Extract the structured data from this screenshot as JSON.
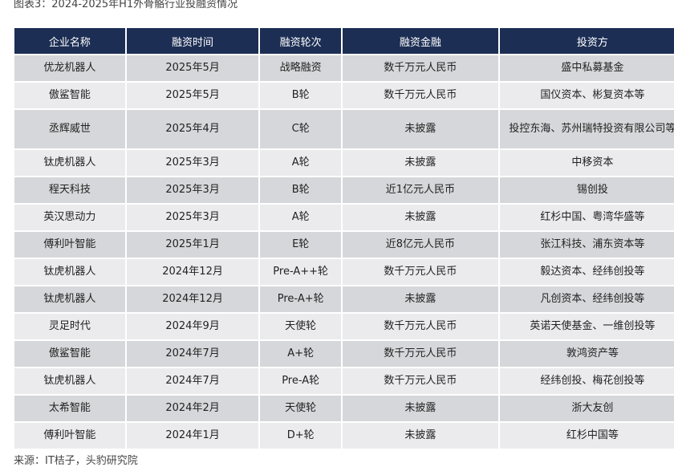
{
  "title": "图表3：2024-2025年H1外骨骼行业投融资情况",
  "headers": [
    "企业名称",
    "融资时间",
    "融资轮次",
    "融资金融",
    "投资方"
  ],
  "rows": [
    [
      "优龙机器人",
      "2025年5月",
      "战略融资",
      "数千万元人民币",
      "盛中私募基金"
    ],
    [
      "傲鲨智能",
      "2025年5月",
      "B轮",
      "数千万元人民币",
      "国仪资本、彬复资本等"
    ],
    [
      "丞辉威世",
      "2025年4月",
      "C轮",
      "未披露",
      "投控东海、苏州瑞特投资有限公司等"
    ],
    [
      "钛虎机器人",
      "2025年3月",
      "A轮",
      "未披露",
      "中移资本"
    ],
    [
      "程天科技",
      "2025年3月",
      "B轮",
      "近1亿元人民币",
      "锡创投"
    ],
    [
      "英汉思动力",
      "2025年3月",
      "A轮",
      "未披露",
      "红杉中国、粤湾华盛等"
    ],
    [
      "傅利叶智能",
      "2025年1月",
      "E轮",
      "近8亿元人民币",
      "张江科技、浦东资本等"
    ],
    [
      "钛虎机器人",
      "2024年12月",
      "Pre-A++轮",
      "数千万元人民币",
      "毅达资本、经纬创投等"
    ],
    [
      "钛虎机器人",
      "2024年12月",
      "Pre-A+轮",
      "未披露",
      "凡创资本、经纬创投等"
    ],
    [
      "灵足时代",
      "2024年9月",
      "天使轮",
      "数千万元人民币",
      "英诺天使基金、一维创投等"
    ],
    [
      "傲鲨智能",
      "2024年7月",
      "A+轮",
      "数千万元人民币",
      "敦鸿资产等"
    ],
    [
      "钛虎机器人",
      "2024年7月",
      "Pre-A轮",
      "数千万元人民币",
      "经纬创投、梅花创投等"
    ],
    [
      "太希智能",
      "2024年2月",
      "天使轮",
      "未披露",
      "浙大友创"
    ],
    [
      "傅利叶智能",
      "2024年1月",
      "D+轮",
      "未披露",
      "红杉中国等"
    ]
  ],
  "source": "来源：IT桔子，头豹研究院"
}
